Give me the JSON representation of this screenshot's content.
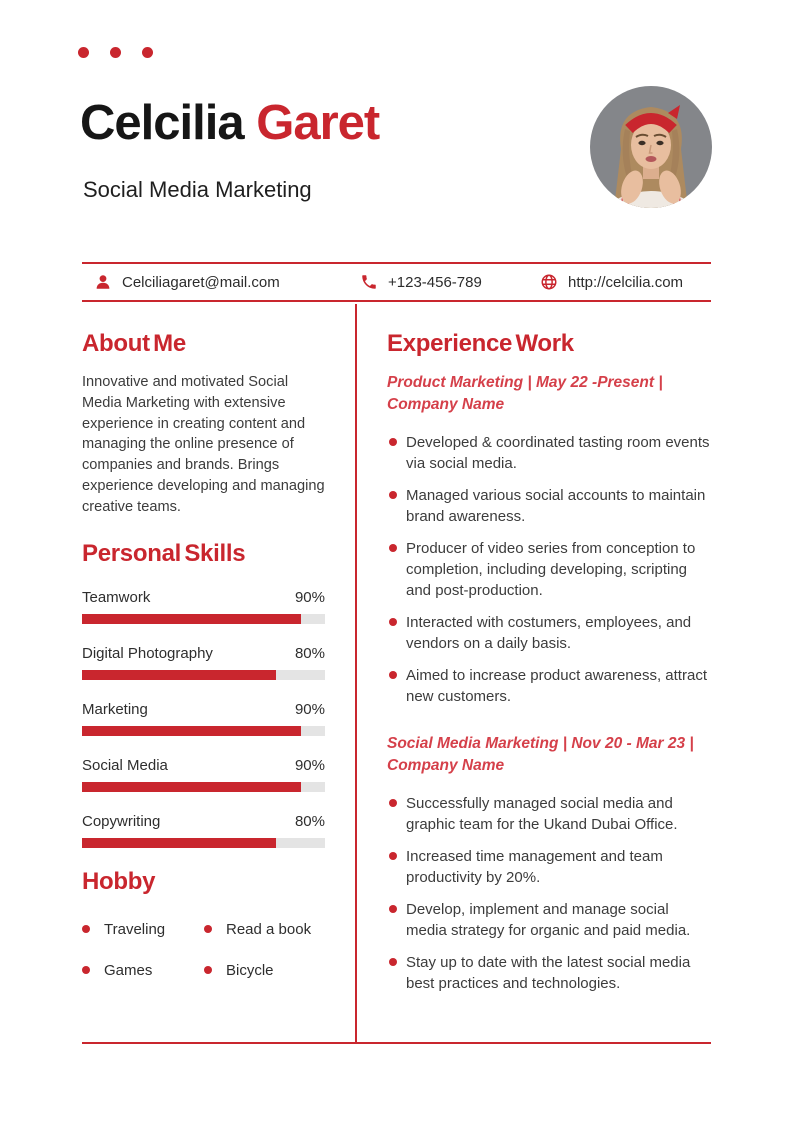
{
  "theme": {
    "accent": "#C9262E",
    "text_color": "#3C3C3C",
    "name_color": "#161616",
    "bar_track_color": "#E4E4E4"
  },
  "header": {
    "name_first": "Celcilia",
    "name_last": "Garet",
    "subtitle": "Social Media Marketing"
  },
  "contact": {
    "items": [
      {
        "icon": "user-icon",
        "text": "Celciliagaret@mail.com"
      },
      {
        "icon": "phone-icon",
        "text": "+123-456-789"
      },
      {
        "icon": "globe-icon",
        "text": "http://celcilia.com"
      }
    ]
  },
  "about": {
    "title": "About Me",
    "text": "Innovative and motivated Social Media Marketing with extensive experience in creating content and managing the online presence of companies and brands. Brings experience developing and managing creative teams."
  },
  "skills": {
    "title": "Personal Skills",
    "items": [
      {
        "label": "Teamwork",
        "value": "90%",
        "percent": 90
      },
      {
        "label": "Digital Photography",
        "value": "80%",
        "percent": 80
      },
      {
        "label": "Marketing",
        "value": "90%",
        "percent": 90
      },
      {
        "label": "Social Media",
        "value": "90%",
        "percent": 90
      },
      {
        "label": "Copywriting",
        "value": "80%",
        "percent": 80
      }
    ]
  },
  "hobby": {
    "title": "Hobby",
    "items": [
      "Traveling",
      "Read a book",
      "Games",
      "Bicycle"
    ]
  },
  "experience": {
    "title": "Experience Work",
    "jobs": [
      {
        "heading": "Product Marketing | May 22 -Present | Company Name",
        "bullets": [
          "Developed & coordinated tasting room events via social media.",
          "Managed various social accounts to maintain brand awareness.",
          "Producer of video series from conception to completion, including developing, scripting and post-production.",
          "Interacted with costumers, employees, and vendors on a daily basis.",
          "Aimed to increase product awareness, attract new customers."
        ]
      },
      {
        "heading": "Social Media Marketing | Nov 20 - Mar 23 | Company Name",
        "bullets": [
          "Successfully managed social media and graphic team for the Ukand Dubai Office.",
          "Increased time management and team productivity by 20%.",
          "Develop, implement and manage social media strategy for organic and paid media.",
          "Stay up to date with the latest social media best practices and technologies."
        ]
      }
    ]
  }
}
